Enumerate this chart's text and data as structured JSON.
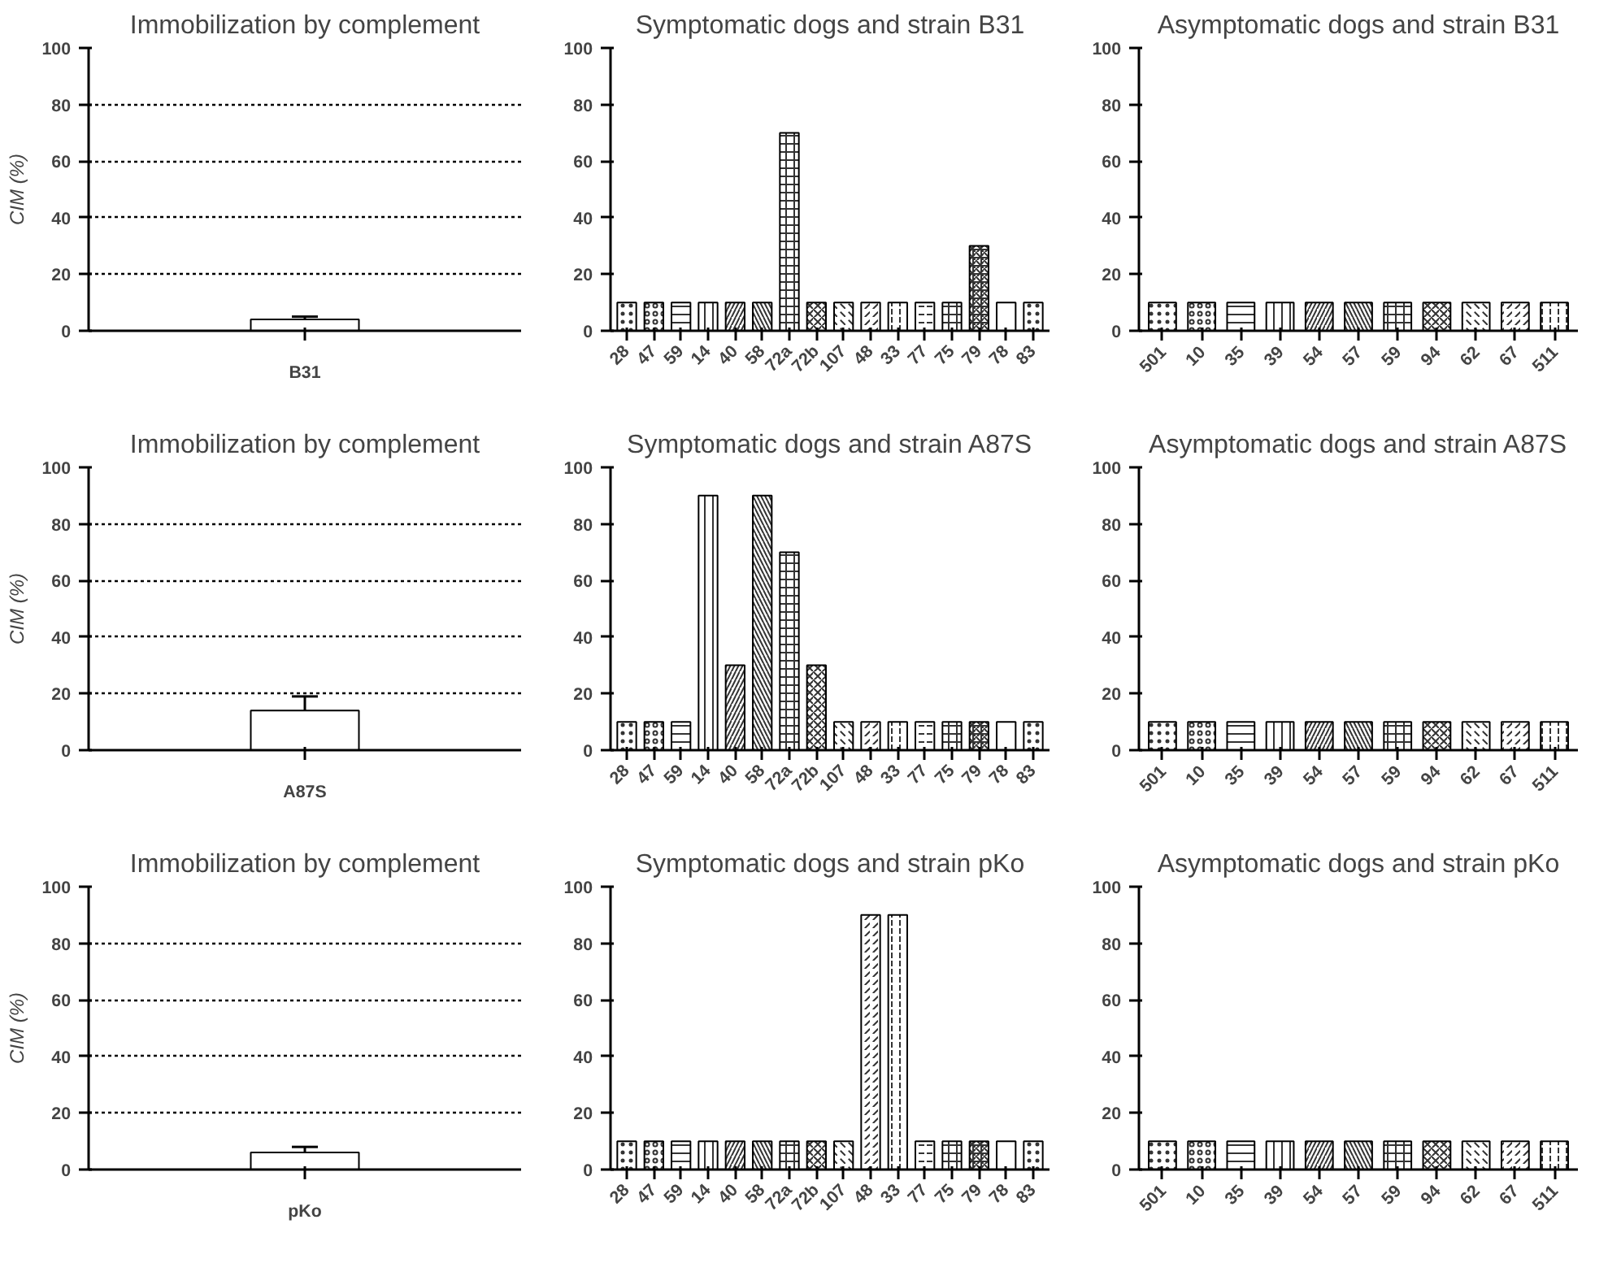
{
  "chart_data": [
    {
      "type": "bar",
      "title": "Immobilization by complement",
      "ylabel": "CIM (%)",
      "categories": [
        "B31"
      ],
      "values": [
        4
      ],
      "errors": [
        1
      ],
      "color": "#ffffff",
      "ylim": [
        0,
        100
      ],
      "yticks": [
        0,
        20,
        40,
        60,
        80,
        100
      ],
      "grid": "y"
    },
    {
      "type": "bar",
      "title": "Symptomatic dogs and strain B31",
      "categories": [
        "28",
        "47",
        "59",
        "14",
        "40",
        "58",
        "72a",
        "72b",
        "107",
        "48",
        "33",
        "77",
        "75",
        "79",
        "78",
        "83"
      ],
      "values": [
        10,
        10,
        10,
        10,
        10,
        10,
        70,
        10,
        10,
        10,
        10,
        10,
        10,
        30,
        10,
        10
      ],
      "color": "#ffffff",
      "ylim": [
        0,
        100
      ],
      "yticks": [
        0,
        20,
        40,
        60,
        80,
        100
      ]
    },
    {
      "type": "bar",
      "title": "Asymptomatic dogs and strain B31",
      "categories": [
        "501",
        "10",
        "35",
        "39",
        "54",
        "57",
        "59",
        "94",
        "62",
        "67",
        "511"
      ],
      "values": [
        10,
        10,
        10,
        10,
        10,
        10,
        10,
        10,
        10,
        10,
        10
      ],
      "color": "#ffffff",
      "ylim": [
        0,
        100
      ],
      "yticks": [
        0,
        20,
        40,
        60,
        80,
        100
      ]
    },
    {
      "type": "bar",
      "title": "Immobilization by complement",
      "ylabel": "CIM (%)",
      "categories": [
        "A87S"
      ],
      "values": [
        14
      ],
      "errors": [
        5
      ],
      "color": "#ffffff",
      "ylim": [
        0,
        100
      ],
      "yticks": [
        0,
        20,
        40,
        60,
        80,
        100
      ],
      "grid": "y"
    },
    {
      "type": "bar",
      "title": "Symptomatic dogs and strain A87S",
      "categories": [
        "28",
        "47",
        "59",
        "14",
        "40",
        "58",
        "72a",
        "72b",
        "107",
        "48",
        "33",
        "77",
        "75",
        "79",
        "78",
        "83"
      ],
      "values": [
        10,
        10,
        10,
        90,
        30,
        90,
        70,
        30,
        10,
        10,
        10,
        10,
        10,
        10,
        10,
        10
      ],
      "color": "#ffffff",
      "ylim": [
        0,
        100
      ],
      "yticks": [
        0,
        20,
        40,
        60,
        80,
        100
      ]
    },
    {
      "type": "bar",
      "title": "Asymptomatic dogs and strain A87S",
      "categories": [
        "501",
        "10",
        "35",
        "39",
        "54",
        "57",
        "59",
        "94",
        "62",
        "67",
        "511"
      ],
      "values": [
        10,
        10,
        10,
        10,
        10,
        10,
        10,
        10,
        10,
        10,
        10
      ],
      "color": "#ffffff",
      "ylim": [
        0,
        100
      ],
      "yticks": [
        0,
        20,
        40,
        60,
        80,
        100
      ]
    },
    {
      "type": "bar",
      "title": "Immobilization by complement",
      "ylabel": "CIM (%)",
      "categories": [
        "pKo"
      ],
      "values": [
        6
      ],
      "errors": [
        2
      ],
      "color": "#ffffff",
      "ylim": [
        0,
        100
      ],
      "yticks": [
        0,
        20,
        40,
        60,
        80,
        100
      ],
      "grid": "y"
    },
    {
      "type": "bar",
      "title": "Symptomatic dogs and strain pKo",
      "categories": [
        "28",
        "47",
        "59",
        "14",
        "40",
        "58",
        "72a",
        "72b",
        "107",
        "48",
        "33",
        "77",
        "75",
        "79",
        "78",
        "83"
      ],
      "values": [
        10,
        10,
        10,
        10,
        10,
        10,
        10,
        10,
        10,
        90,
        90,
        10,
        10,
        10,
        10,
        10
      ],
      "color": "#ffffff",
      "ylim": [
        0,
        100
      ],
      "yticks": [
        0,
        20,
        40,
        60,
        80,
        100
      ]
    },
    {
      "type": "bar",
      "title": "Asymptomatic dogs and strain pKo",
      "categories": [
        "501",
        "10",
        "35",
        "39",
        "54",
        "57",
        "59",
        "94",
        "62",
        "67",
        "511"
      ],
      "values": [
        10,
        10,
        10,
        10,
        10,
        10,
        10,
        10,
        10,
        10,
        10
      ],
      "color": "#ffffff",
      "ylim": [
        0,
        100
      ],
      "yticks": [
        0,
        20,
        40,
        60,
        80,
        100
      ]
    }
  ]
}
